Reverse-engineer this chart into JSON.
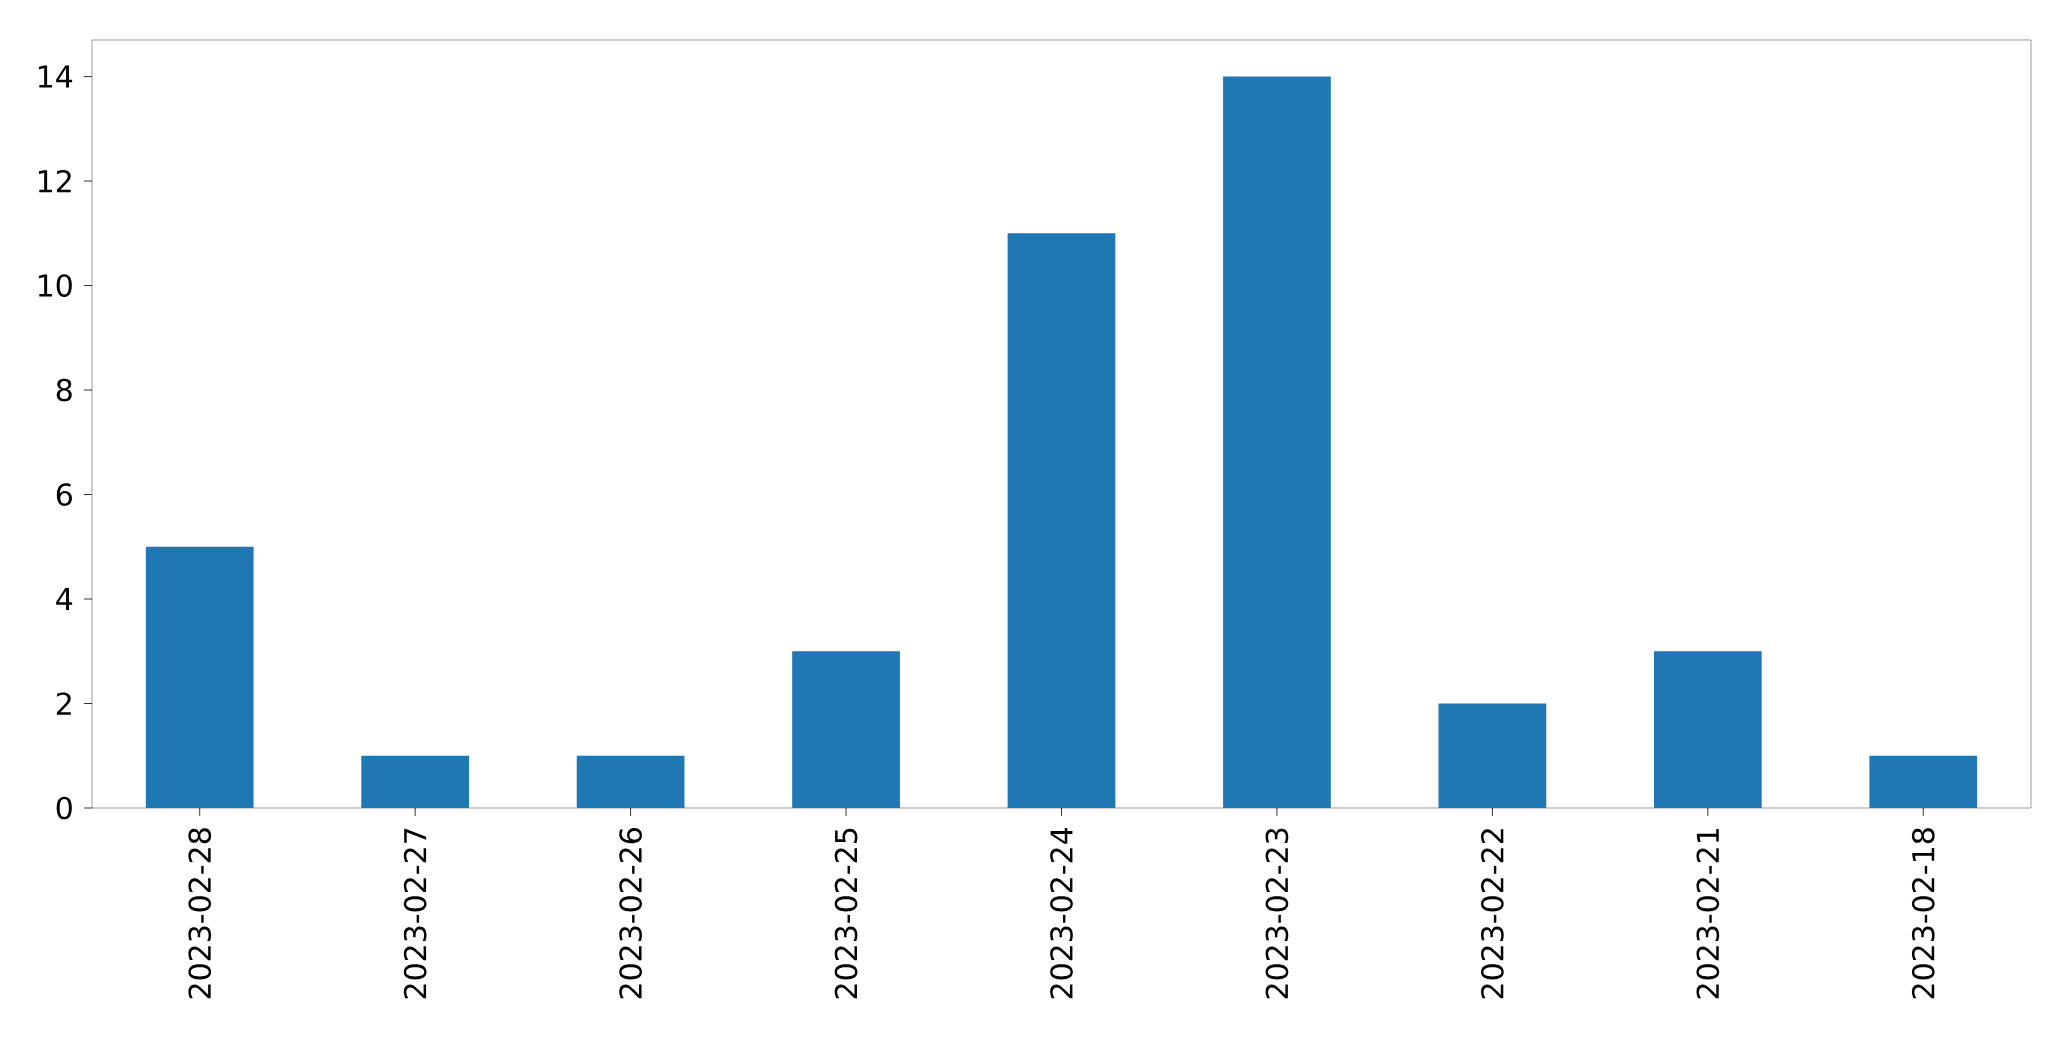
{
  "chart_data": {
    "type": "bar",
    "categories": [
      "2023-02-28",
      "2023-02-27",
      "2023-02-26",
      "2023-02-25",
      "2023-02-24",
      "2023-02-23",
      "2023-02-22",
      "2023-02-21",
      "2023-02-18"
    ],
    "values": [
      5,
      1,
      1,
      3,
      11,
      14,
      2,
      3,
      1
    ],
    "color": "#1f77b4",
    "ylim": [
      0,
      14.7
    ],
    "yticks": [
      0,
      2,
      4,
      6,
      8,
      10,
      12,
      14
    ]
  }
}
